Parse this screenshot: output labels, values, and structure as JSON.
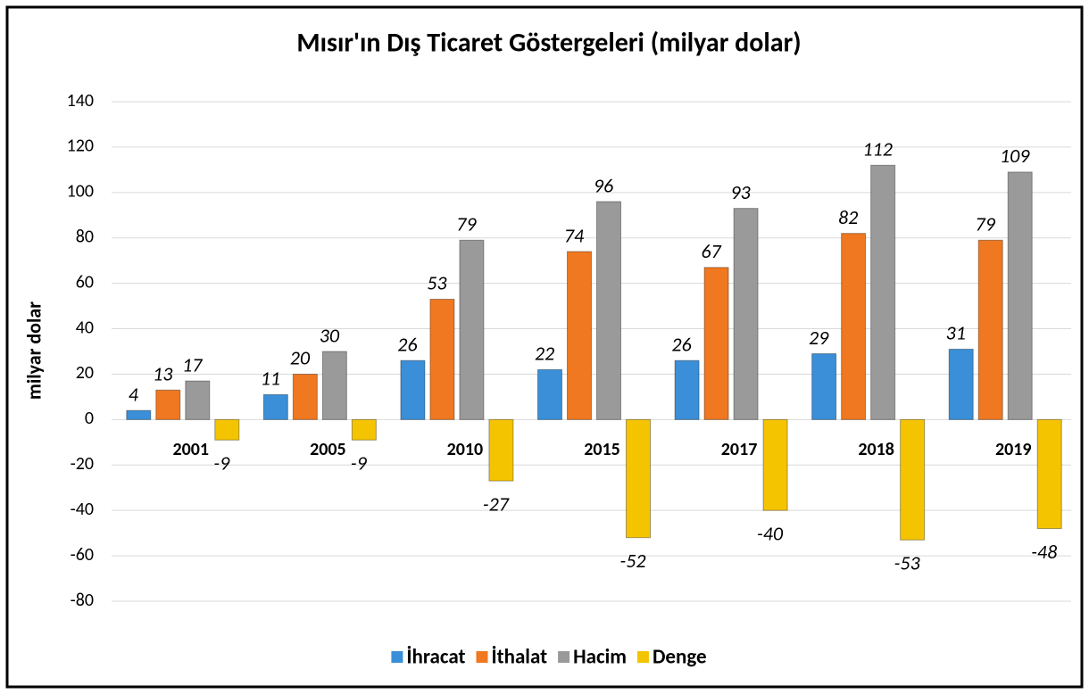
{
  "chart_data": {
    "type": "bar",
    "title": "Mısır'ın Dış Ticaret Göstergeleri (milyar dolar)",
    "y_label": "milyar dolar",
    "categories": [
      "2001",
      "2005",
      "2010",
      "2015",
      "2017",
      "2018",
      "2019"
    ],
    "series": [
      {
        "name": "İhracat",
        "color": "#3a8fd8",
        "values": [
          4,
          11,
          26,
          22,
          26,
          29,
          31
        ]
      },
      {
        "name": "İthalat",
        "color": "#f07820",
        "values": [
          13,
          20,
          53,
          74,
          67,
          82,
          79
        ]
      },
      {
        "name": "Hacim",
        "color": "#9a9a9a",
        "values": [
          17,
          30,
          79,
          96,
          93,
          112,
          109
        ]
      },
      {
        "name": "Denge",
        "color": "#f5c400",
        "values": [
          -9,
          -9,
          -27,
          -52,
          -40,
          -53,
          -48
        ]
      }
    ],
    "ylim": [
      -80,
      140
    ],
    "yticks": [
      -80,
      -60,
      -40,
      -20,
      0,
      20,
      40,
      60,
      80,
      100,
      120,
      140
    ],
    "grid": true,
    "legend": "bottom"
  }
}
